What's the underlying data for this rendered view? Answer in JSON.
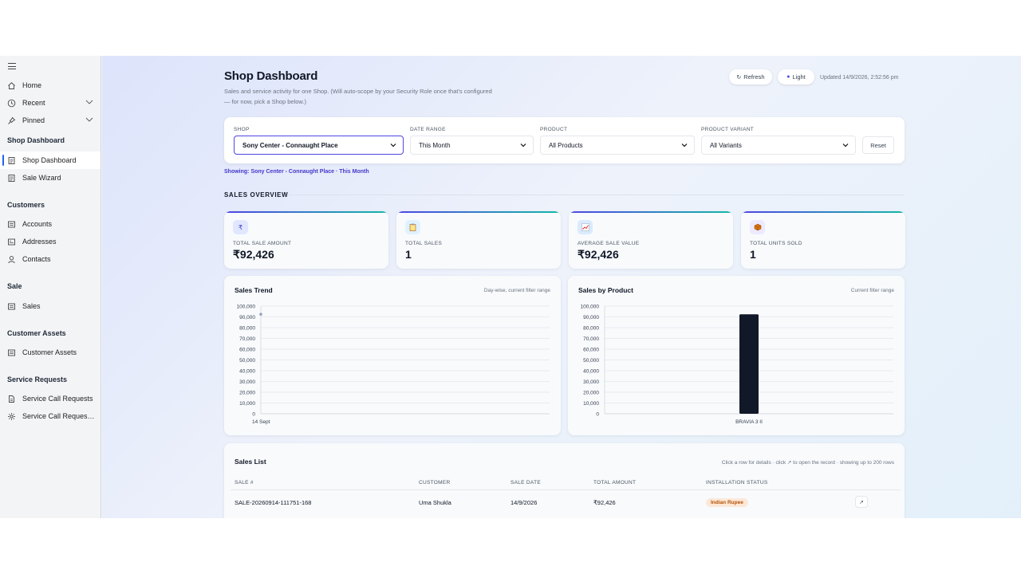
{
  "sidebar": {
    "items": [
      {
        "label": "Home",
        "icon": "home-icon"
      },
      {
        "label": "Recent",
        "icon": "clock-icon"
      },
      {
        "label": "Pinned",
        "icon": "pin-icon"
      }
    ],
    "groups": [
      {
        "heading": "Shop Dashboard",
        "items": [
          {
            "label": "Shop Dashboard",
            "icon": "dashboard-icon"
          },
          {
            "label": "Sale Wizard",
            "icon": "wizard-icon"
          }
        ]
      },
      {
        "heading": "Customers",
        "items": [
          {
            "label": "Accounts",
            "icon": "accounts-icon"
          },
          {
            "label": "Addresses",
            "icon": "addresses-icon"
          },
          {
            "label": "Contacts",
            "icon": "person-icon"
          }
        ]
      },
      {
        "heading": "Sale",
        "items": [
          {
            "label": "Sales",
            "icon": "sales-icon"
          }
        ]
      },
      {
        "heading": "Customer Assets",
        "items": [
          {
            "label": "Customer Assets",
            "icon": "assets-icon"
          }
        ]
      },
      {
        "heading": "Service Requests",
        "items": [
          {
            "label": "Service Call Requests",
            "icon": "document-icon"
          },
          {
            "label": "Service Call Request ...",
            "icon": "gear-icon"
          }
        ]
      }
    ]
  },
  "header": {
    "title": "Shop Dashboard",
    "subtitle": "Sales and service activity for one Shop. (Will auto-scope by your Security Role once that's configured — for now, pick a Shop below.)",
    "refresh_label": "Refresh",
    "theme_label": "Light",
    "updated": "Updated 14/9/2026, 2:52:56 pm"
  },
  "filters": {
    "shop": {
      "label": "SHOP",
      "value": "Sony Center - Connaught Place"
    },
    "date_range": {
      "label": "DATE RANGE",
      "value": "This Month"
    },
    "product": {
      "label": "PRODUCT",
      "value": "All Products"
    },
    "variant": {
      "label": "PRODUCT VARIANT",
      "value": "All Variants"
    },
    "reset_label": "Reset"
  },
  "showing": "Showing: Sony Center - Connaught Place · This Month",
  "overview": {
    "title": "SALES OVERVIEW",
    "kpis": [
      {
        "icon": "rupee-icon",
        "label": "TOTAL SALE AMOUNT",
        "value": "₹92,426"
      },
      {
        "icon": "clipboard-icon",
        "label": "TOTAL SALES",
        "value": "1"
      },
      {
        "icon": "chart-icon",
        "label": "AVERAGE SALE VALUE",
        "value": "₹92,426"
      },
      {
        "icon": "box-icon",
        "label": "TOTAL UNITS SOLD",
        "value": "1"
      }
    ]
  },
  "chart_data": [
    {
      "type": "scatter",
      "title": "Sales Trend",
      "subtitle": "Day-wise, current filter range",
      "categories": [
        "14 Sept"
      ],
      "values": [
        92426
      ],
      "ylim": [
        0,
        100000
      ],
      "yticks": [
        "100,000",
        "90,000",
        "80,000",
        "70,000",
        "60,000",
        "50,000",
        "40,000",
        "30,000",
        "20,000",
        "10,000",
        "0"
      ],
      "grid": true,
      "color": "#94a3b8"
    },
    {
      "type": "bar",
      "title": "Sales by Product",
      "subtitle": "Current filter range",
      "categories": [
        "BRAVIA 3 II"
      ],
      "values": [
        92426
      ],
      "ylim": [
        0,
        100000
      ],
      "yticks": [
        "100,000",
        "90,000",
        "80,000",
        "70,000",
        "60,000",
        "50,000",
        "40,000",
        "30,000",
        "20,000",
        "10,000",
        "0"
      ],
      "grid": true,
      "color": "#111827"
    }
  ],
  "sales_list": {
    "title": "Sales List",
    "hint": "Click a row for details · click ↗ to open the record · showing up to 200 rows",
    "columns": [
      "SALE #",
      "CUSTOMER",
      "SALE DATE",
      "TOTAL AMOUNT",
      "INSTALLATION STATUS"
    ],
    "rows": [
      {
        "sale_no": "SALE-20260914-111751-168",
        "customer": "Uma Shukla",
        "date": "14/9/2026",
        "amount": "₹92,426",
        "status": "Indian Rupee",
        "open": "↗"
      }
    ]
  }
}
